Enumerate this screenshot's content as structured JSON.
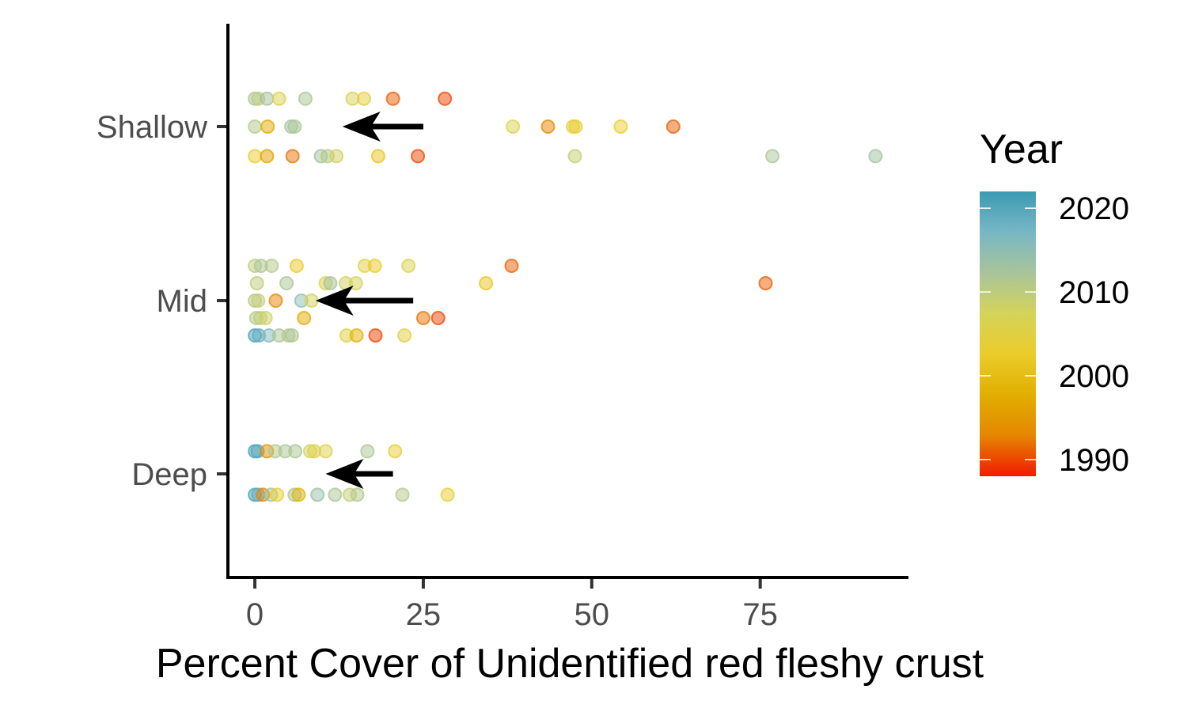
{
  "chart_data": {
    "type": "scatter",
    "xlabel": "Percent Cover of Unidentified red fleshy crust",
    "ylabel": "",
    "x_ticks": [
      0,
      25,
      50,
      75
    ],
    "x_tick_labels": [
      "0",
      "25",
      "50",
      "75"
    ],
    "xlim": [
      -4,
      97
    ],
    "categories": [
      "Shallow",
      "Mid",
      "Deep"
    ],
    "legend": {
      "title": "Year",
      "ticks": [
        2020,
        2010,
        2000,
        1990
      ],
      "tick_labels": [
        "2020",
        "2010",
        "2000",
        "1990"
      ],
      "range": [
        1988,
        2022
      ],
      "placement": "right",
      "colors": [
        "#F21A00",
        "#E58601",
        "#E1AF00",
        "#EBCC2A",
        "#D4D35A",
        "#A8C49A",
        "#78B7C5",
        "#3B9AB2"
      ]
    },
    "arrows": [
      {
        "category": "Shallow",
        "from_x": 25,
        "to_x": 13
      },
      {
        "category": "Mid",
        "from_x": 23.5,
        "to_x": 9
      },
      {
        "category": "Deep",
        "from_x": 20.5,
        "to_x": 10.5
      }
    ],
    "points": [
      {
        "category": "Shallow",
        "x": 0,
        "jitter": 0.16,
        "year": 2012
      },
      {
        "category": "Shallow",
        "x": 0.5,
        "jitter": 0.16,
        "year": 2010
      },
      {
        "category": "Shallow",
        "x": 1.8,
        "jitter": 0.16,
        "year": 2013
      },
      {
        "category": "Shallow",
        "x": 3.6,
        "jitter": 0.16,
        "year": 2006
      },
      {
        "category": "Shallow",
        "x": 7.5,
        "jitter": 0.16,
        "year": 2012
      },
      {
        "category": "Shallow",
        "x": 14.5,
        "jitter": 0.16,
        "year": 2007
      },
      {
        "category": "Shallow",
        "x": 16.2,
        "jitter": 0.16,
        "year": 2004
      },
      {
        "category": "Shallow",
        "x": 20.5,
        "jitter": 0.16,
        "year": 1991
      },
      {
        "category": "Shallow",
        "x": 28.2,
        "jitter": 0.16,
        "year": 1990
      },
      {
        "category": "Shallow",
        "x": 0,
        "jitter": 0.0,
        "year": 2011
      },
      {
        "category": "Shallow",
        "x": 1.9,
        "jitter": 0.0,
        "year": 1997
      },
      {
        "category": "Shallow",
        "x": 5.4,
        "jitter": 0.0,
        "year": 2013
      },
      {
        "category": "Shallow",
        "x": 5.9,
        "jitter": 0.0,
        "year": 2012
      },
      {
        "category": "Shallow",
        "x": 38.3,
        "jitter": 0.0,
        "year": 2006
      },
      {
        "category": "Shallow",
        "x": 43.5,
        "jitter": 0.0,
        "year": 1993
      },
      {
        "category": "Shallow",
        "x": 47.2,
        "jitter": 0.0,
        "year": 2004
      },
      {
        "category": "Shallow",
        "x": 47.6,
        "jitter": 0.0,
        "year": 2003
      },
      {
        "category": "Shallow",
        "x": 54.3,
        "jitter": 0.0,
        "year": 2003
      },
      {
        "category": "Shallow",
        "x": 62.1,
        "jitter": 0.0,
        "year": 1991
      },
      {
        "category": "Shallow",
        "x": 0,
        "jitter": -0.17,
        "year": 2003
      },
      {
        "category": "Shallow",
        "x": 1.8,
        "jitter": -0.17,
        "year": 1996
      },
      {
        "category": "Shallow",
        "x": 5.6,
        "jitter": -0.17,
        "year": 1992
      },
      {
        "category": "Shallow",
        "x": 9.8,
        "jitter": -0.17,
        "year": 2013
      },
      {
        "category": "Shallow",
        "x": 10.8,
        "jitter": -0.17,
        "year": 2011
      },
      {
        "category": "Shallow",
        "x": 12.1,
        "jitter": -0.17,
        "year": 2008
      },
      {
        "category": "Shallow",
        "x": 18.3,
        "jitter": -0.17,
        "year": 2001
      },
      {
        "category": "Shallow",
        "x": 24.2,
        "jitter": -0.17,
        "year": 1990
      },
      {
        "category": "Shallow",
        "x": 47.5,
        "jitter": -0.17,
        "year": 2009
      },
      {
        "category": "Shallow",
        "x": 76.8,
        "jitter": -0.17,
        "year": 2012
      },
      {
        "category": "Shallow",
        "x": 92.1,
        "jitter": -0.17,
        "year": 2013
      },
      {
        "category": "Mid",
        "x": 0,
        "jitter": 0.2,
        "year": 2010
      },
      {
        "category": "Mid",
        "x": 0.9,
        "jitter": 0.2,
        "year": 2012
      },
      {
        "category": "Mid",
        "x": 2.5,
        "jitter": 0.2,
        "year": 2011
      },
      {
        "category": "Mid",
        "x": 6.2,
        "jitter": 0.2,
        "year": 2002
      },
      {
        "category": "Mid",
        "x": 16.3,
        "jitter": 0.2,
        "year": 2005
      },
      {
        "category": "Mid",
        "x": 17.8,
        "jitter": 0.2,
        "year": 2002
      },
      {
        "category": "Mid",
        "x": 22.8,
        "jitter": 0.2,
        "year": 2006
      },
      {
        "category": "Mid",
        "x": 38.1,
        "jitter": 0.2,
        "year": 1991
      },
      {
        "category": "Mid",
        "x": 0.3,
        "jitter": 0.1,
        "year": 2010
      },
      {
        "category": "Mid",
        "x": 4.7,
        "jitter": 0.1,
        "year": 2012
      },
      {
        "category": "Mid",
        "x": 10.5,
        "jitter": 0.1,
        "year": 2005
      },
      {
        "category": "Mid",
        "x": 11.2,
        "jitter": 0.1,
        "year": 2013
      },
      {
        "category": "Mid",
        "x": 13.5,
        "jitter": 0.1,
        "year": 2008
      },
      {
        "category": "Mid",
        "x": 15.0,
        "jitter": 0.1,
        "year": 2007
      },
      {
        "category": "Mid",
        "x": 34.3,
        "jitter": 0.1,
        "year": 2001
      },
      {
        "category": "Mid",
        "x": 75.8,
        "jitter": 0.1,
        "year": 1991
      },
      {
        "category": "Mid",
        "x": 0,
        "jitter": 0.0,
        "year": 2011
      },
      {
        "category": "Mid",
        "x": 0.5,
        "jitter": 0.0,
        "year": 2009
      },
      {
        "category": "Mid",
        "x": 3.1,
        "jitter": 0.0,
        "year": 1993
      },
      {
        "category": "Mid",
        "x": 6.9,
        "jitter": 0.0,
        "year": 2015
      },
      {
        "category": "Mid",
        "x": 8.4,
        "jitter": 0.0,
        "year": 2007
      },
      {
        "category": "Mid",
        "x": 0.2,
        "jitter": -0.1,
        "year": 2011
      },
      {
        "category": "Mid",
        "x": 0.8,
        "jitter": -0.1,
        "year": 2010
      },
      {
        "category": "Mid",
        "x": 1.6,
        "jitter": -0.1,
        "year": 2008
      },
      {
        "category": "Mid",
        "x": 7.3,
        "jitter": -0.1,
        "year": 1997
      },
      {
        "category": "Mid",
        "x": 25.0,
        "jitter": -0.1,
        "year": 1992
      },
      {
        "category": "Mid",
        "x": 27.2,
        "jitter": -0.1,
        "year": 1990
      },
      {
        "category": "Mid",
        "x": 0,
        "jitter": -0.2,
        "year": 2021
      },
      {
        "category": "Mid",
        "x": 0.6,
        "jitter": -0.2,
        "year": 2019
      },
      {
        "category": "Mid",
        "x": 2.1,
        "jitter": -0.2,
        "year": 2016
      },
      {
        "category": "Mid",
        "x": 3.6,
        "jitter": -0.2,
        "year": 2012
      },
      {
        "category": "Mid",
        "x": 5.0,
        "jitter": -0.2,
        "year": 2011
      },
      {
        "category": "Mid",
        "x": 5.5,
        "jitter": -0.2,
        "year": 2012
      },
      {
        "category": "Mid",
        "x": 13.6,
        "jitter": -0.2,
        "year": 2005
      },
      {
        "category": "Mid",
        "x": 15.1,
        "jitter": -0.2,
        "year": 1998
      },
      {
        "category": "Mid",
        "x": 17.9,
        "jitter": -0.2,
        "year": 1990
      },
      {
        "category": "Mid",
        "x": 22.2,
        "jitter": -0.2,
        "year": 2005
      },
      {
        "category": "Deep",
        "x": 0,
        "jitter": 0.13,
        "year": 2021
      },
      {
        "category": "Deep",
        "x": 0.4,
        "jitter": 0.13,
        "year": 2020
      },
      {
        "category": "Deep",
        "x": 1.8,
        "jitter": 0.13,
        "year": 1994
      },
      {
        "category": "Deep",
        "x": 3.0,
        "jitter": 0.13,
        "year": 2011
      },
      {
        "category": "Deep",
        "x": 4.5,
        "jitter": 0.13,
        "year": 2012
      },
      {
        "category": "Deep",
        "x": 6.0,
        "jitter": 0.13,
        "year": 2012
      },
      {
        "category": "Deep",
        "x": 8.2,
        "jitter": 0.13,
        "year": 2008
      },
      {
        "category": "Deep",
        "x": 8.8,
        "jitter": 0.13,
        "year": 2005
      },
      {
        "category": "Deep",
        "x": 10.5,
        "jitter": 0.13,
        "year": 2006
      },
      {
        "category": "Deep",
        "x": 16.7,
        "jitter": 0.13,
        "year": 2012
      },
      {
        "category": "Deep",
        "x": 20.8,
        "jitter": 0.13,
        "year": 2003
      },
      {
        "category": "Deep",
        "x": 0,
        "jitter": -0.12,
        "year": 2021
      },
      {
        "category": "Deep",
        "x": 0.5,
        "jitter": -0.12,
        "year": 2019
      },
      {
        "category": "Deep",
        "x": 1.2,
        "jitter": -0.12,
        "year": 1993
      },
      {
        "category": "Deep",
        "x": 2.4,
        "jitter": -0.12,
        "year": 2013
      },
      {
        "category": "Deep",
        "x": 3.3,
        "jitter": -0.12,
        "year": 2003
      },
      {
        "category": "Deep",
        "x": 5.9,
        "jitter": -0.12,
        "year": 2012
      },
      {
        "category": "Deep",
        "x": 6.5,
        "jitter": -0.12,
        "year": 1998
      },
      {
        "category": "Deep",
        "x": 9.3,
        "jitter": -0.12,
        "year": 2014
      },
      {
        "category": "Deep",
        "x": 11.9,
        "jitter": -0.12,
        "year": 2012
      },
      {
        "category": "Deep",
        "x": 14.1,
        "jitter": -0.12,
        "year": 2009
      },
      {
        "category": "Deep",
        "x": 15.2,
        "jitter": -0.12,
        "year": 2011
      },
      {
        "category": "Deep",
        "x": 21.9,
        "jitter": -0.12,
        "year": 2011
      },
      {
        "category": "Deep",
        "x": 28.6,
        "jitter": -0.12,
        "year": 2003
      }
    ]
  }
}
